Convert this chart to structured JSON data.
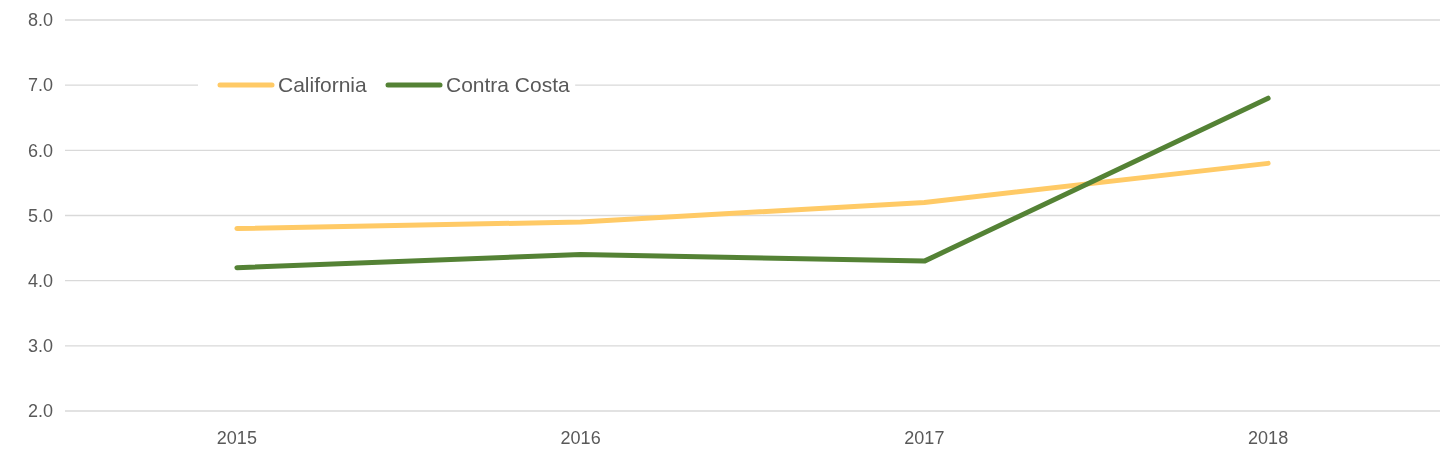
{
  "chart_data": {
    "type": "line",
    "categories": [
      "2015",
      "2016",
      "2017",
      "2018"
    ],
    "series": [
      {
        "name": "California",
        "color": "#ffca66",
        "values": [
          4.8,
          4.9,
          5.2,
          5.8
        ]
      },
      {
        "name": "Contra Costa",
        "color": "#548235",
        "values": [
          4.2,
          4.4,
          4.3,
          6.8
        ]
      }
    ],
    "ylim": [
      2,
      8
    ],
    "yticks": [
      {
        "value": 2,
        "label": "2.0"
      },
      {
        "value": 3,
        "label": "3.0"
      },
      {
        "value": 4,
        "label": "4.0"
      },
      {
        "value": 5,
        "label": "5.0"
      },
      {
        "value": 6,
        "label": "6.0"
      },
      {
        "value": 7,
        "label": "7.0"
      },
      {
        "value": 8,
        "label": "8.0"
      }
    ],
    "grid": "y",
    "legend": "top left",
    "marker": "none",
    "line_style": "solid"
  }
}
